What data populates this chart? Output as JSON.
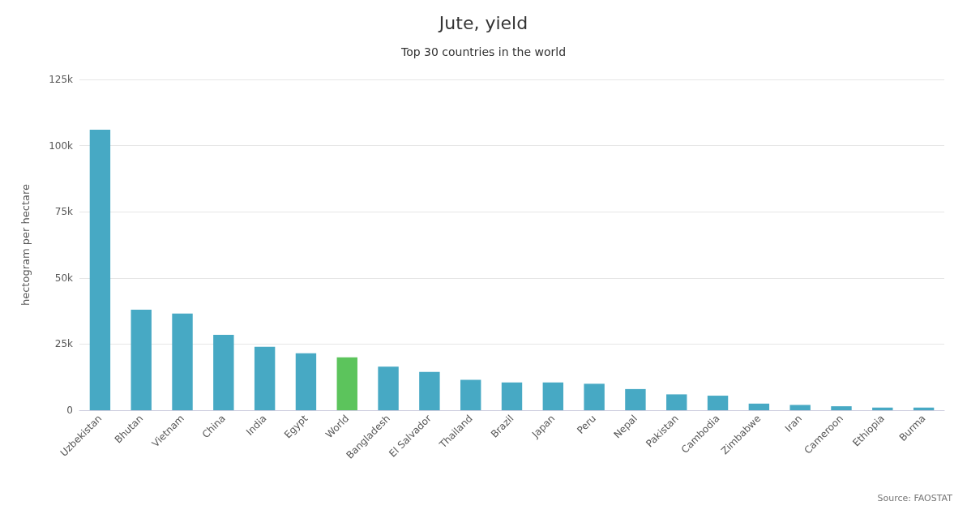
{
  "chart_data": {
    "type": "bar",
    "title": "Jute, yield",
    "subtitle": "Top 30 countries in the world",
    "ylabel": "hectogram per hectare",
    "categories": [
      "Uzbekistan",
      "Bhutan",
      "Vietnam",
      "China",
      "India",
      "Egypt",
      "World",
      "Bangladesh",
      "El Salvador",
      "Thailand",
      "Brazil",
      "Japan",
      "Peru",
      "Nepal",
      "Pakistan",
      "Cambodia",
      "Zimbabwe",
      "Iran",
      "Cameroon",
      "Ethiopia",
      "Burma"
    ],
    "values": [
      106000,
      38000,
      36500,
      28500,
      24000,
      21500,
      20000,
      16500,
      14500,
      11500,
      10500,
      10500,
      10000,
      8000,
      6000,
      5500,
      2500,
      2000,
      1500,
      1000,
      1000
    ],
    "colors": [
      "#47a9c4",
      "#47a9c4",
      "#47a9c4",
      "#47a9c4",
      "#47a9c4",
      "#47a9c4",
      "#5cc45c",
      "#47a9c4",
      "#47a9c4",
      "#47a9c4",
      "#47a9c4",
      "#47a9c4",
      "#47a9c4",
      "#47a9c4",
      "#47a9c4",
      "#47a9c4",
      "#47a9c4",
      "#47a9c4",
      "#47a9c4",
      "#47a9c4",
      "#47a9c4"
    ],
    "ylim": [
      0,
      125000
    ],
    "yticks": [
      {
        "value": 0,
        "label": "0"
      },
      {
        "value": 25000,
        "label": "25k"
      },
      {
        "value": 50000,
        "label": "50k"
      },
      {
        "value": 75000,
        "label": "75k"
      },
      {
        "value": 100000,
        "label": "100k"
      },
      {
        "value": 125000,
        "label": "125k"
      }
    ],
    "grid": "y",
    "annotations": [
      "Source: FAOSTAT"
    ]
  }
}
